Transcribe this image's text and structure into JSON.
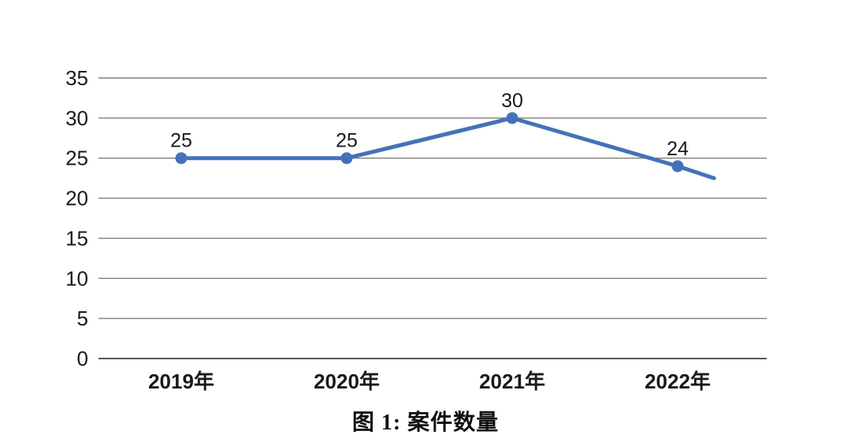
{
  "chart_data": {
    "type": "line",
    "categories": [
      "2019年",
      "2020年",
      "2021年",
      "2022年"
    ],
    "values": [
      25,
      25,
      30,
      24
    ],
    "data_labels": [
      "25",
      "25",
      "30",
      "24"
    ],
    "series": [
      {
        "name": "案件数量",
        "values": [
          25,
          25,
          30,
          24
        ]
      }
    ],
    "title": "图 1: 案件数量",
    "xlabel": "",
    "ylabel": "",
    "ylim": [
      0,
      35
    ],
    "yticks": [
      0,
      5,
      10,
      15,
      20,
      25,
      30,
      35
    ],
    "grid": "horizontal",
    "legend": "none",
    "marker": "circle",
    "line_tail_end_value": 22.5,
    "colors": {
      "line": "#4472b8",
      "grid": "#7f7f7f",
      "axis": "#595959",
      "text": "#1a1a1a"
    }
  }
}
